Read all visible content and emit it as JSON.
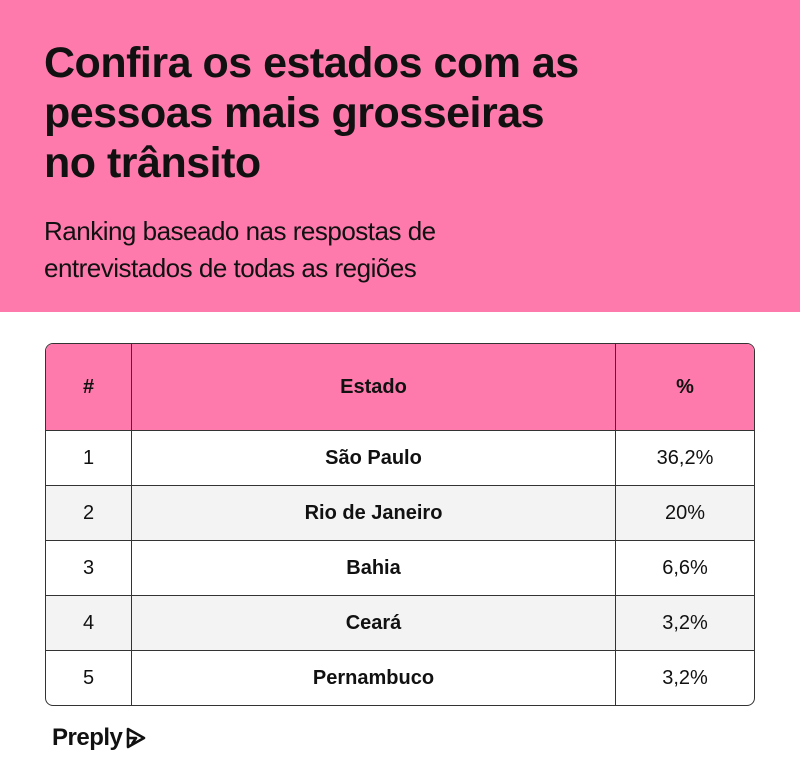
{
  "header": {
    "title_lines": [
      "Confira os estados com as",
      "pessoas mais grosseiras",
      "no trânsito"
    ],
    "subtitle_lines": [
      "Ranking baseado nas respostas de",
      "entrevistados de todas as regiões"
    ]
  },
  "table": {
    "columns": [
      "#",
      "Estado",
      "%"
    ],
    "rows": [
      [
        "1",
        "São Paulo",
        "36,2%"
      ],
      [
        "2",
        "Rio de Janeiro",
        "20%"
      ],
      [
        "3",
        "Bahia",
        "6,6%"
      ],
      [
        "4",
        "Ceará",
        "3,2%"
      ],
      [
        "5",
        "Pernambuco",
        "3,2%"
      ]
    ]
  },
  "footer": {
    "logo": "Preply"
  }
}
